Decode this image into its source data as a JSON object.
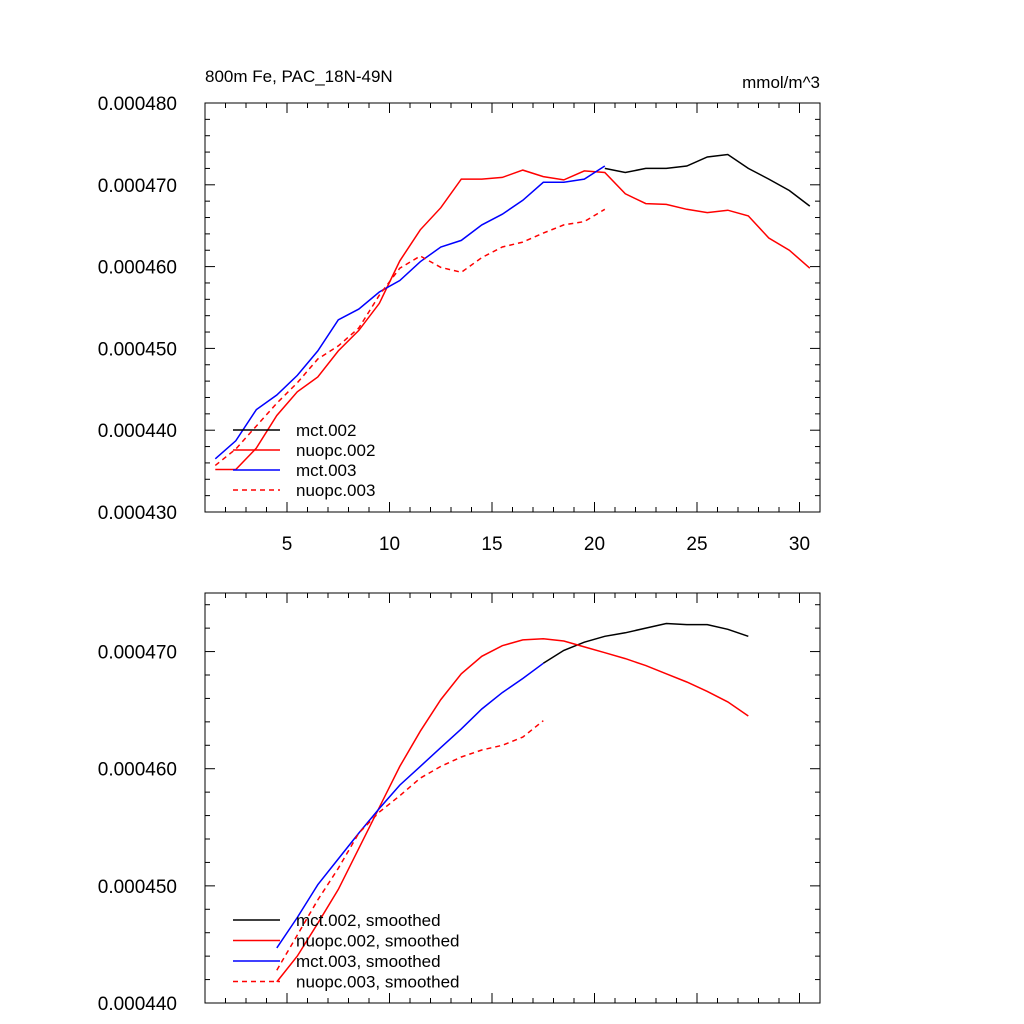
{
  "top": {
    "title_left": "800m Fe, PAC_18N-49N",
    "title_right": "mmol/m^3",
    "type": "line",
    "xlim": [
      1,
      31
    ],
    "ylim": [
      0.00043,
      0.00048
    ],
    "xticks": [
      5,
      10,
      15,
      20,
      25,
      30
    ],
    "xtick_labels": [
      "5",
      "10",
      "15",
      "20",
      "25",
      "30"
    ],
    "yticks": [
      0.00043,
      0.00044,
      0.00045,
      0.00046,
      0.00047,
      0.00048
    ],
    "ytick_labels": [
      "0.000430",
      "0.000440",
      "0.000450",
      "0.000460",
      "0.000470",
      "0.000480"
    ],
    "legend_labels": [
      "mct.002",
      "nuopc.002",
      "mct.003",
      "nuopc.003"
    ]
  },
  "bottom": {
    "type": "line",
    "xlim": [
      1,
      31
    ],
    "ylim": [
      0.00044,
      0.000475
    ],
    "xticks": [
      5,
      10,
      15,
      20,
      25,
      30
    ],
    "yticks": [
      0.00044,
      0.00045,
      0.00046,
      0.00047
    ],
    "ytick_labels": [
      "0.000440",
      "0.000450",
      "0.000460",
      "0.000470"
    ],
    "legend_labels": [
      "mct.002, smoothed",
      "nuopc.002, smoothed",
      "mct.003, smoothed",
      "nuopc.003, smoothed"
    ]
  },
  "series_styles": [
    {
      "color": "#000000",
      "dash": ""
    },
    {
      "color": "#ff0000",
      "dash": ""
    },
    {
      "color": "#0000ff",
      "dash": ""
    },
    {
      "color": "#ff0000",
      "dash": "5,4"
    }
  ],
  "chart_data": [
    {
      "type": "line",
      "title": "800m Fe, PAC_18N-49N",
      "units": "mmol/m^3",
      "xlim": [
        1,
        31
      ],
      "ylim": [
        0.00043,
        0.00048
      ],
      "series": [
        {
          "name": "mct.002",
          "x": [
            20.5,
            21.5,
            22.5,
            23.5,
            24.5,
            25.5,
            26.5,
            27.5,
            28.5,
            29.5,
            30.5
          ],
          "y": [
            0.000472,
            0.0004715,
            0.000472,
            0.000472,
            0.0004723,
            0.0004734,
            0.0004737,
            0.000472,
            0.0004707,
            0.0004693,
            0.0004674
          ]
        },
        {
          "name": "nuopc.002",
          "x": [
            1.5,
            2.5,
            3.5,
            4.5,
            5.5,
            6.5,
            7.5,
            8.5,
            9.5,
            10.5,
            11.5,
            12.5,
            13.5,
            14.5,
            15.5,
            16.5,
            17.5,
            18.5,
            19.5,
            20.5,
            21.5,
            22.5,
            23.5,
            24.5,
            25.5,
            26.5,
            27.5,
            28.5,
            29.5,
            30.5
          ],
          "y": [
            0.0004352,
            0.0004352,
            0.0004378,
            0.0004418,
            0.0004447,
            0.0004465,
            0.0004497,
            0.0004522,
            0.0004555,
            0.0004607,
            0.0004645,
            0.0004672,
            0.0004707,
            0.0004707,
            0.0004709,
            0.0004718,
            0.000471,
            0.0004706,
            0.0004717,
            0.0004715,
            0.0004689,
            0.0004677,
            0.0004676,
            0.000467,
            0.0004666,
            0.0004669,
            0.0004662,
            0.0004635,
            0.000462,
            0.0004598
          ]
        },
        {
          "name": "mct.003",
          "x": [
            1.5,
            2.5,
            3.5,
            4.5,
            5.5,
            6.5,
            7.5,
            8.5,
            9.5,
            10.5,
            11.5,
            12.5,
            13.5,
            14.5,
            15.5,
            16.5,
            17.5,
            18.5,
            19.5,
            20.5
          ],
          "y": [
            0.0004365,
            0.0004387,
            0.0004425,
            0.0004443,
            0.0004467,
            0.0004497,
            0.0004535,
            0.0004548,
            0.0004569,
            0.0004583,
            0.0004606,
            0.0004624,
            0.0004632,
            0.0004651,
            0.0004664,
            0.0004681,
            0.0004703,
            0.0004703,
            0.0004707,
            0.0004723
          ]
        },
        {
          "name": "nuopc.003",
          "x": [
            1.5,
            2.5,
            3.5,
            4.5,
            5.5,
            6.5,
            7.5,
            8.5,
            9.5,
            10.5,
            11.5,
            12.5,
            13.5,
            14.5,
            15.5,
            16.5,
            17.5,
            18.5,
            19.5,
            20.5
          ],
          "y": [
            0.0004357,
            0.0004377,
            0.0004405,
            0.0004433,
            0.0004458,
            0.0004487,
            0.0004503,
            0.0004525,
            0.0004565,
            0.0004598,
            0.0004613,
            0.0004599,
            0.0004593,
            0.0004611,
            0.0004624,
            0.000463,
            0.0004641,
            0.0004651,
            0.0004655,
            0.000467
          ]
        }
      ]
    },
    {
      "type": "line",
      "xlim": [
        1,
        31
      ],
      "ylim": [
        0.00044,
        0.000475
      ],
      "series": [
        {
          "name": "mct.002, smoothed",
          "x": [
            17.5,
            18.5,
            19.5,
            20.5,
            21.5,
            22.5,
            23.5,
            24.5,
            25.5,
            26.5,
            27.5
          ],
          "y": [
            0.000469,
            0.0004701,
            0.0004708,
            0.0004713,
            0.0004716,
            0.000472,
            0.0004724,
            0.0004723,
            0.0004723,
            0.0004719,
            0.0004713
          ]
        },
        {
          "name": "nuopc.002, smoothed",
          "x": [
            4.5,
            5.5,
            6.5,
            7.5,
            8.5,
            9.5,
            10.5,
            11.5,
            12.5,
            13.5,
            14.5,
            15.5,
            16.5,
            17.5,
            18.5,
            19.5,
            20.5,
            21.5,
            22.5,
            23.5,
            24.5,
            25.5,
            26.5,
            27.5
          ],
          "y": [
            0.0004418,
            0.000444,
            0.0004468,
            0.0004497,
            0.0004532,
            0.0004567,
            0.0004602,
            0.0004632,
            0.0004659,
            0.0004681,
            0.0004696,
            0.0004705,
            0.000471,
            0.0004711,
            0.0004709,
            0.0004704,
            0.0004699,
            0.0004694,
            0.0004688,
            0.0004681,
            0.0004674,
            0.0004666,
            0.0004657,
            0.0004645
          ]
        },
        {
          "name": "mct.003, smoothed",
          "x": [
            4.5,
            5.5,
            6.5,
            7.5,
            8.5,
            9.5,
            10.5,
            11.5,
            12.5,
            13.5,
            14.5,
            15.5,
            16.5,
            17.5
          ],
          "y": [
            0.0004447,
            0.0004473,
            0.0004501,
            0.0004523,
            0.0004545,
            0.0004566,
            0.0004586,
            0.0004602,
            0.0004618,
            0.0004634,
            0.0004651,
            0.0004665,
            0.0004677,
            0.000469
          ]
        },
        {
          "name": "nuopc.003, smoothed",
          "x": [
            4.5,
            5.5,
            6.5,
            7.5,
            8.5,
            9.5,
            10.5,
            11.5,
            12.5,
            13.5,
            14.5,
            15.5,
            16.5,
            17.5
          ],
          "y": [
            0.0004428,
            0.0004458,
            0.0004488,
            0.0004515,
            0.0004545,
            0.0004563,
            0.0004577,
            0.0004592,
            0.0004602,
            0.000461,
            0.0004616,
            0.000462,
            0.0004627,
            0.0004641
          ]
        }
      ]
    }
  ]
}
